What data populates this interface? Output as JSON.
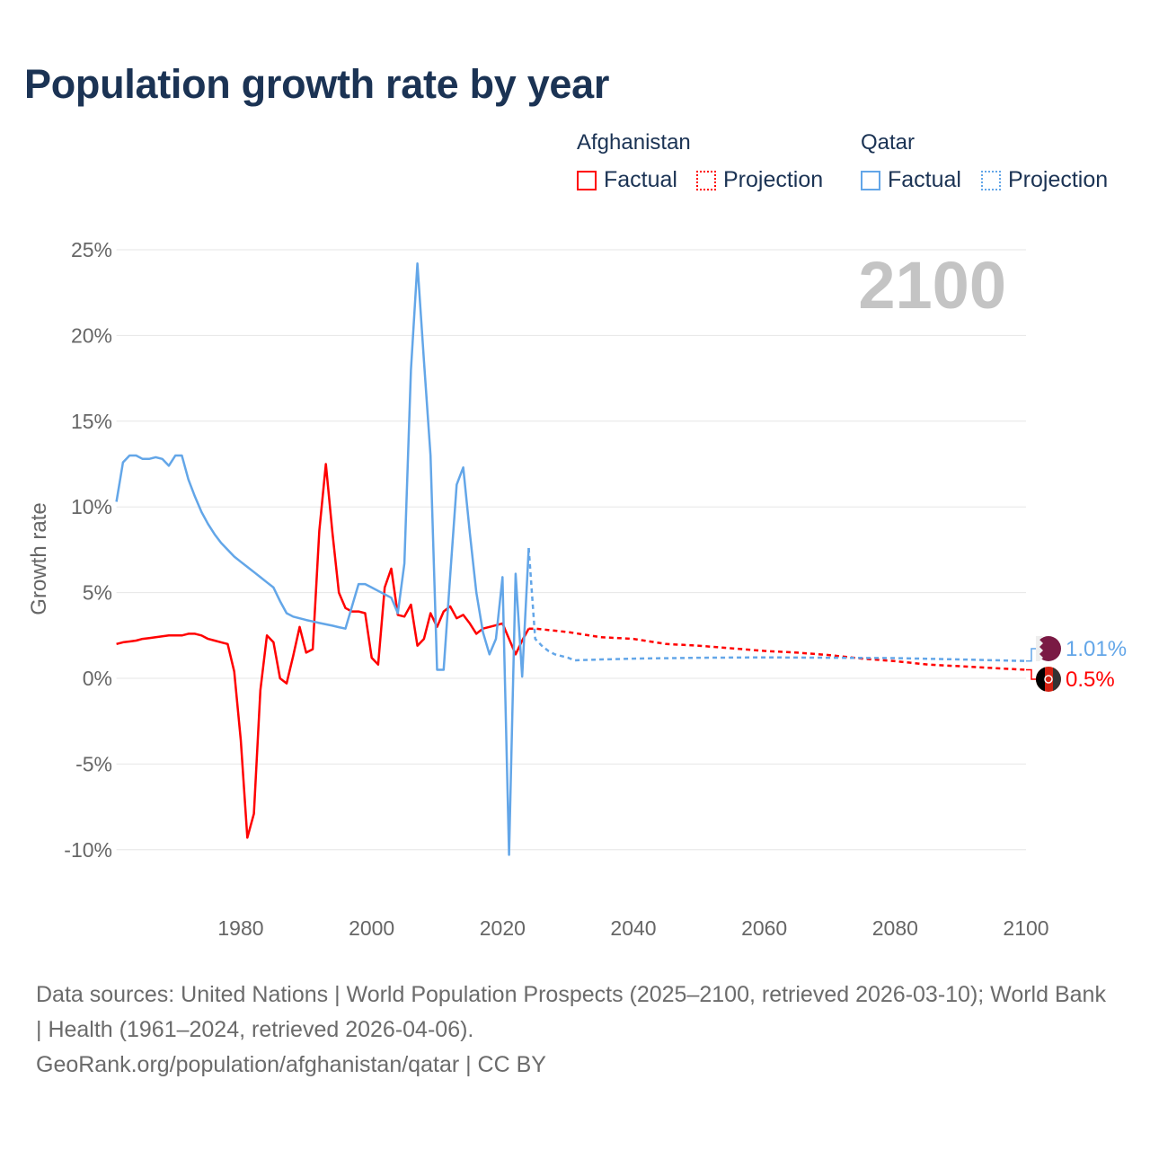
{
  "title": "Population growth rate by year",
  "legend": {
    "groups": [
      {
        "name": "Afghanistan",
        "color": "#ff0000",
        "factual": "Factual",
        "projection": "Projection"
      },
      {
        "name": "Qatar",
        "color": "#63a6e8",
        "factual": "Factual",
        "projection": "Projection"
      }
    ]
  },
  "footer": {
    "line1": "Data sources: United Nations | World Population Prospects (2025–2100, retrieved 2026-03-10); World Bank | Health (1961–2024, retrieved 2026-04-06).",
    "line2": "GeoRank.org/population/afghanistan/qatar | CC BY"
  },
  "chart_data": {
    "type": "line",
    "title": "Population growth rate by year",
    "ylabel": "Growth rate",
    "xlabel": "",
    "year_label": "2100",
    "xlim": [
      1961,
      2100
    ],
    "ylim": [
      -10,
      25
    ],
    "x_ticks": [
      "1980",
      "2000",
      "2020",
      "2040",
      "2060",
      "2080",
      "2100"
    ],
    "y_ticks": [
      {
        "v": 25,
        "label": "25%"
      },
      {
        "v": 20,
        "label": "20%"
      },
      {
        "v": 15,
        "label": "15%"
      },
      {
        "v": 10,
        "label": "10%"
      },
      {
        "v": 5,
        "label": "5%"
      },
      {
        "v": 0,
        "label": "0%"
      },
      {
        "v": -5,
        "label": "-5%"
      },
      {
        "v": -10,
        "label": "-10%"
      }
    ],
    "grid": true,
    "series": [
      {
        "name": "Afghanistan",
        "color": "#ff0000",
        "end_label": "0.5%",
        "factual": {
          "start_year": 1961,
          "values": [
            2.0,
            2.1,
            2.15,
            2.2,
            2.3,
            2.35,
            2.4,
            2.45,
            2.5,
            2.5,
            2.5,
            2.6,
            2.6,
            2.5,
            2.3,
            2.2,
            2.1,
            2.0,
            0.4,
            -3.6,
            -9.3,
            -7.9,
            -0.7,
            2.5,
            2.1,
            0.0,
            -0.3,
            1.3,
            3.0,
            1.5,
            1.7,
            8.6,
            12.5,
            8.5,
            5.0,
            4.1,
            3.9,
            3.9,
            3.8,
            1.2,
            0.8,
            5.3,
            6.4,
            3.7,
            3.6,
            4.3,
            1.9,
            2.3,
            3.8,
            3.0,
            3.9,
            4.2,
            3.5,
            3.7,
            3.2,
            2.6,
            2.9,
            3.0,
            3.1,
            3.2,
            2.3,
            1.4,
            2.2,
            2.9
          ]
        },
        "projection": {
          "years": [
            2024,
            2025,
            2030,
            2035,
            2040,
            2045,
            2050,
            2055,
            2060,
            2065,
            2070,
            2075,
            2080,
            2085,
            2090,
            2095,
            2100
          ],
          "values": [
            2.9,
            2.9,
            2.7,
            2.4,
            2.3,
            2.0,
            1.9,
            1.75,
            1.6,
            1.5,
            1.35,
            1.15,
            1.0,
            0.8,
            0.7,
            0.6,
            0.5
          ]
        }
      },
      {
        "name": "Qatar",
        "color": "#63a6e8",
        "end_label": "1.01%",
        "factual": {
          "start_year": 1961,
          "values": [
            10.3,
            12.6,
            13.0,
            13.0,
            12.8,
            12.8,
            12.9,
            12.8,
            12.4,
            13.0,
            13.0,
            11.6,
            10.6,
            9.7,
            9.0,
            8.4,
            7.9,
            7.5,
            7.1,
            6.8,
            6.5,
            6.2,
            5.9,
            5.6,
            5.3,
            4.5,
            3.8,
            3.6,
            3.5,
            3.4,
            3.32,
            3.23,
            3.15,
            3.07,
            2.98,
            2.9,
            4.2,
            5.5,
            5.5,
            5.3,
            5.1,
            4.9,
            4.7,
            3.8,
            6.7,
            18.0,
            24.2,
            18.5,
            13.0,
            0.5,
            0.5,
            6.0,
            11.3,
            12.3,
            8.5,
            5.0,
            2.7,
            1.4,
            2.3,
            5.9,
            -10.3,
            6.1,
            0.1,
            7.6
          ]
        },
        "projection": {
          "years": [
            2024,
            2025,
            2026,
            2027,
            2028,
            2029,
            2030,
            2031,
            2035,
            2040,
            2050,
            2060,
            2070,
            2080,
            2090,
            2100
          ],
          "values": [
            7.6,
            2.3,
            1.9,
            1.6,
            1.4,
            1.3,
            1.2,
            1.05,
            1.1,
            1.15,
            1.2,
            1.22,
            1.2,
            1.18,
            1.1,
            1.01
          ]
        }
      }
    ]
  }
}
